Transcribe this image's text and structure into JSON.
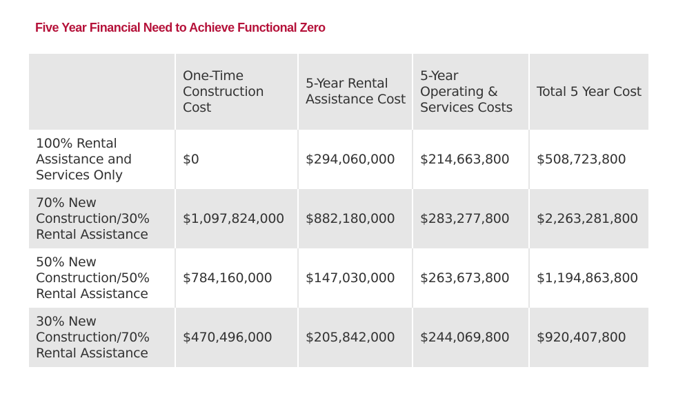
{
  "title": "Five Year Financial Need to Achieve Functional Zero",
  "colors": {
    "title": "#b5123a",
    "stripe": "#e6e6e6",
    "text": "#333333"
  },
  "table": {
    "headers": [
      "",
      "One-Time Construction Cost",
      "5-Year Rental Assistance Cost",
      "5-Year Operating & Services Costs",
      "Total 5 Year Cost"
    ],
    "rows": [
      {
        "label": "100% Rental Assistance and Services Only",
        "construction": "$0",
        "rental": "$294,060,000",
        "operating": "$214,663,800",
        "total": "$508,723,800"
      },
      {
        "label": "70% New Construction/30% Rental Assistance",
        "construction": "$1,097,824,000",
        "rental": "$882,180,000",
        "operating": "$283,277,800",
        "total": "$2,263,281,800"
      },
      {
        "label": "50% New Construction/50% Rental Assistance",
        "construction": "$784,160,000",
        "rental": "$147,030,000",
        "operating": "$263,673,800",
        "total": "$1,194,863,800"
      },
      {
        "label": "30% New Construction/70% Rental Assistance",
        "construction": "$470,496,000",
        "rental": "$205,842,000",
        "operating": "$244,069,800",
        "total": "$920,407,800"
      }
    ]
  }
}
